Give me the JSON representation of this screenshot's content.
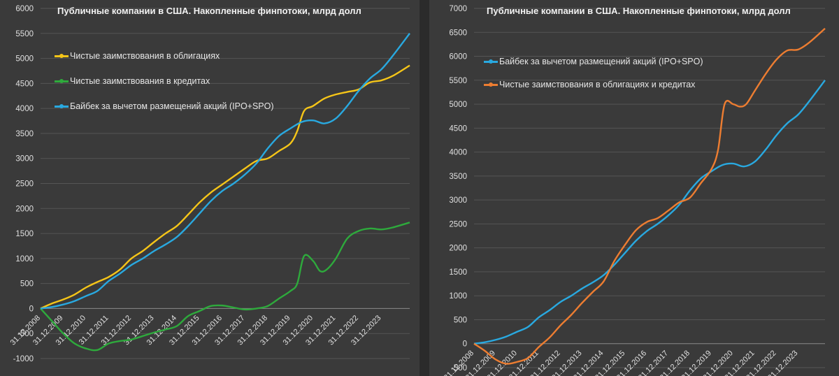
{
  "chart_data": [
    {
      "type": "line",
      "title": "Публичные компании в США. Накопленные финпотоки, млрд долл",
      "ylim": [
        -1000,
        6000
      ],
      "yticks": [
        -1000,
        -500,
        0,
        500,
        1000,
        1500,
        2000,
        2500,
        3000,
        3500,
        4000,
        4500,
        5000,
        5500,
        6000
      ],
      "x_start": 2008.0,
      "x_end": 2024.25,
      "xtick_labels": [
        "31.12.2008",
        "31.12.2009",
        "31.12.2010",
        "31.12.2011",
        "31.12.2012",
        "31.12.2013",
        "31.12.2014",
        "31.12.2015",
        "31.12.2016",
        "31.12.2017",
        "31.12.2018",
        "31.12.2019",
        "31.12.2020",
        "31.12.2021",
        "31.12.2022",
        "31.12.2023"
      ],
      "legend_position": "top-left",
      "series": [
        {
          "name": "Чистые заимствования в облигациях",
          "color": "#f5c518",
          "x": [
            2008,
            2008.5,
            2009,
            2009.5,
            2010,
            2010.5,
            2011,
            2011.5,
            2012,
            2012.5,
            2013,
            2013.5,
            2014,
            2014.5,
            2015,
            2015.5,
            2016,
            2016.5,
            2017,
            2017.5,
            2018,
            2018.5,
            2019,
            2019.3,
            2019.6,
            2020,
            2020.5,
            2021,
            2021.5,
            2022,
            2022.5,
            2023,
            2023.5,
            2024.25
          ],
          "values": [
            0,
            100,
            180,
            280,
            420,
            530,
            630,
            780,
            1000,
            1150,
            1330,
            1500,
            1650,
            1880,
            2120,
            2320,
            2480,
            2640,
            2800,
            2950,
            3000,
            3150,
            3300,
            3550,
            3950,
            4050,
            4200,
            4280,
            4330,
            4380,
            4520,
            4560,
            4650,
            4860
          ]
        },
        {
          "name": "Чистые заимствования в кредитах",
          "color": "#2eaa3c",
          "x": [
            2008,
            2008.5,
            2009,
            2009.5,
            2010,
            2010.5,
            2011,
            2011.5,
            2012,
            2012.5,
            2013,
            2013.5,
            2014,
            2014.5,
            2015,
            2015.5,
            2016,
            2016.5,
            2017,
            2017.5,
            2018,
            2018.5,
            2019,
            2019.3,
            2019.6,
            2020,
            2020.3,
            2020.6,
            2021,
            2021.5,
            2022,
            2022.5,
            2023,
            2023.5,
            2024.25
          ],
          "values": [
            0,
            -250,
            -500,
            -700,
            -800,
            -830,
            -700,
            -650,
            -620,
            -550,
            -480,
            -420,
            -350,
            -150,
            -50,
            50,
            60,
            20,
            -20,
            0,
            50,
            200,
            350,
            500,
            1050,
            950,
            750,
            780,
            1000,
            1400,
            1550,
            1600,
            1580,
            1620,
            1720
          ]
        },
        {
          "name": "Байбек за вычетом размещений акций (IPO+SPO)",
          "color": "#29a9e0",
          "x": [
            2008,
            2008.5,
            2009,
            2009.5,
            2010,
            2010.5,
            2011,
            2011.5,
            2012,
            2012.5,
            2013,
            2013.5,
            2014,
            2014.5,
            2015,
            2015.5,
            2016,
            2016.5,
            2017,
            2017.5,
            2018,
            2018.5,
            2019,
            2019.5,
            2020,
            2020.5,
            2021,
            2021.5,
            2022,
            2022.5,
            2023,
            2023.5,
            2024.25
          ],
          "values": [
            0,
            30,
            80,
            150,
            250,
            350,
            550,
            700,
            870,
            1000,
            1150,
            1280,
            1430,
            1650,
            1900,
            2150,
            2350,
            2500,
            2680,
            2900,
            3200,
            3450,
            3600,
            3730,
            3760,
            3700,
            3800,
            4050,
            4350,
            4600,
            4780,
            5050,
            5500
          ]
        }
      ]
    },
    {
      "type": "line",
      "title": "Публичные компании в США. Накопленные финпотоки, млрд долл",
      "ylim": [
        -500,
        7000
      ],
      "yticks": [
        -500,
        0,
        500,
        1000,
        1500,
        2000,
        2500,
        3000,
        3500,
        4000,
        4500,
        5000,
        5500,
        6000,
        6500,
        7000
      ],
      "x_start": 2008.0,
      "x_end": 2024.25,
      "xtick_labels": [
        "31.12.2008",
        "31.12.2009",
        "31.12.2010",
        "31.12.2011",
        "31.12.2012",
        "31.12.2013",
        "31.12.2014",
        "31.12.2015",
        "31.12.2016",
        "31.12.2017",
        "31.12.2018",
        "31.12.2019",
        "31.12.2020",
        "31.12.2021",
        "31.12.2022",
        "31.12.2023"
      ],
      "legend_position": "top-left",
      "series": [
        {
          "name": "Байбек за вычетом размещений акций (IPO+SPO)",
          "color": "#29a9e0",
          "x": [
            2008,
            2008.5,
            2009,
            2009.5,
            2010,
            2010.5,
            2011,
            2011.5,
            2012,
            2012.5,
            2013,
            2013.5,
            2014,
            2014.5,
            2015,
            2015.5,
            2016,
            2016.5,
            2017,
            2017.5,
            2018,
            2018.5,
            2019,
            2019.5,
            2020,
            2020.5,
            2021,
            2021.5,
            2022,
            2022.5,
            2023,
            2023.5,
            2024.25
          ],
          "values": [
            0,
            30,
            80,
            150,
            250,
            350,
            550,
            700,
            870,
            1000,
            1150,
            1280,
            1430,
            1650,
            1900,
            2150,
            2350,
            2500,
            2680,
            2900,
            3200,
            3450,
            3600,
            3730,
            3760,
            3700,
            3800,
            4050,
            4350,
            4600,
            4780,
            5050,
            5500
          ]
        },
        {
          "name": "Чистые заимствования в облигациях и кредитах",
          "color": "#ed7d31",
          "x": [
            2008,
            2008.5,
            2009,
            2009.5,
            2010,
            2010.5,
            2011,
            2011.5,
            2012,
            2012.5,
            2013,
            2013.5,
            2014,
            2014.5,
            2015,
            2015.5,
            2016,
            2016.5,
            2017,
            2017.5,
            2018,
            2018.5,
            2019,
            2019.3,
            2019.6,
            2020,
            2020.3,
            2020.6,
            2021,
            2021.5,
            2022,
            2022.5,
            2023,
            2023.5,
            2024.25
          ],
          "values": [
            0,
            -150,
            -330,
            -420,
            -380,
            -300,
            -70,
            130,
            380,
            600,
            850,
            1080,
            1300,
            1730,
            2070,
            2370,
            2540,
            2620,
            2780,
            2950,
            3050,
            3350,
            3650,
            4050,
            5000,
            5000,
            4950,
            5000,
            5280,
            5630,
            5930,
            6120,
            6140,
            6280,
            6580
          ]
        }
      ]
    }
  ]
}
